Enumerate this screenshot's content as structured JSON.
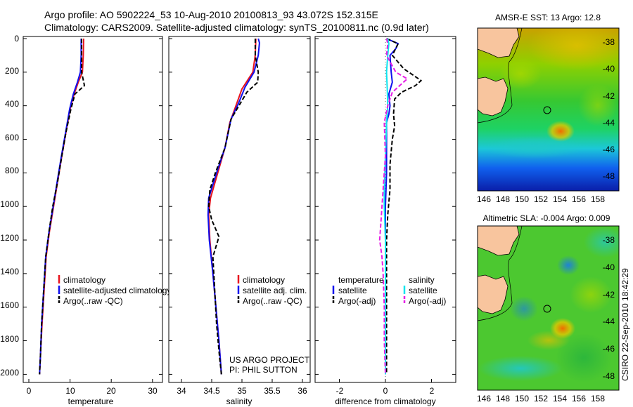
{
  "header": {
    "line1": "Argo profile: AO 5902224_53 10-Aug-2010 20100813_93 43.072S 152.315E",
    "line2": "Climatology: CARS2009. Satellite-adjusted climatology: synTS_20100811.nc (0.9d later)"
  },
  "credits": {
    "project": "US ARGO PROJECT",
    "pi": "PI: PHIL SUTTON",
    "stamp": "CSIRO 22-Sep-2010 18:42:29"
  },
  "colors": {
    "climatology": "#e8141e",
    "satellite": "#1010ee",
    "argo": "#000000",
    "salinity_sat": "#11e4ee",
    "salinity_argo": "#e61ee6",
    "land": "#f8c59e"
  },
  "chart_data": [
    {
      "type": "line",
      "title": "",
      "xlabel": "temperature",
      "ylabel": "",
      "xlim": [
        -2,
        32
      ],
      "ylim": [
        2050,
        0
      ],
      "xticks": [
        0,
        10,
        20,
        30
      ],
      "yticks": [
        0,
        200,
        400,
        600,
        800,
        1000,
        1200,
        1400,
        1600,
        1800,
        2000
      ],
      "series": [
        {
          "name": "climatology",
          "color": "#e8141e",
          "dash": "",
          "points": [
            [
              13.3,
              0
            ],
            [
              13.2,
              100
            ],
            [
              13.0,
              200
            ],
            [
              12.0,
              260
            ],
            [
              11.0,
              330
            ],
            [
              10.0,
              420
            ],
            [
              9.0,
              560
            ],
            [
              8.0,
              700
            ],
            [
              7.0,
              850
            ],
            [
              6.0,
              1000
            ],
            [
              5.0,
              1150
            ],
            [
              4.2,
              1300
            ],
            [
              3.7,
              1500
            ],
            [
              3.2,
              1700
            ],
            [
              2.8,
              1900
            ],
            [
              2.6,
              2000
            ]
          ]
        },
        {
          "name": "satellite-adjusted climatology",
          "color": "#1010ee",
          "dash": "",
          "points": [
            [
              12.7,
              0
            ],
            [
              12.7,
              100
            ],
            [
              12.5,
              200
            ],
            [
              11.8,
              260
            ],
            [
              10.8,
              330
            ],
            [
              9.9,
              420
            ],
            [
              8.9,
              560
            ],
            [
              7.9,
              700
            ],
            [
              6.9,
              850
            ],
            [
              5.9,
              1000
            ],
            [
              4.9,
              1150
            ],
            [
              4.1,
              1300
            ],
            [
              3.6,
              1500
            ],
            [
              3.1,
              1700
            ],
            [
              2.8,
              1900
            ],
            [
              2.6,
              2000
            ]
          ]
        },
        {
          "name": "Argo(..raw -QC)",
          "color": "#000000",
          "dash": "6,3",
          "points": [
            [
              12.8,
              0
            ],
            [
              12.8,
              100
            ],
            [
              12.8,
              200
            ],
            [
              13.5,
              280
            ],
            [
              11.2,
              330
            ],
            [
              10.2,
              420
            ],
            [
              9.0,
              560
            ],
            [
              8.0,
              700
            ],
            [
              7.0,
              850
            ],
            [
              5.8,
              1000
            ],
            [
              4.9,
              1150
            ],
            [
              4.1,
              1300
            ],
            [
              3.6,
              1500
            ],
            [
              3.1,
              1700
            ],
            [
              2.8,
              1900
            ],
            [
              2.6,
              2000
            ]
          ]
        }
      ],
      "legend": [
        "climatology",
        "satellite-adjusted climatology",
        "Argo(..raw -QC)"
      ]
    },
    {
      "type": "line",
      "title": "",
      "xlabel": "salinity",
      "ylabel": "",
      "xlim": [
        33.8,
        36.05
      ],
      "ylim": [
        2050,
        0
      ],
      "xticks": [
        34,
        34.5,
        35,
        35.5,
        36
      ],
      "yticks": [
        0,
        200,
        400,
        600,
        800,
        1000,
        1200,
        1400,
        1600,
        1800,
        2000
      ],
      "series": [
        {
          "name": "climatology",
          "color": "#e8141e",
          "dash": "",
          "points": [
            [
              35.23,
              0
            ],
            [
              35.22,
              100
            ],
            [
              35.18,
              200
            ],
            [
              35.0,
              300
            ],
            [
              34.9,
              400
            ],
            [
              34.8,
              500
            ],
            [
              34.72,
              650
            ],
            [
              34.6,
              800
            ],
            [
              34.48,
              950
            ],
            [
              34.45,
              1050
            ],
            [
              34.47,
              1200
            ],
            [
              34.52,
              1400
            ],
            [
              34.57,
              1600
            ],
            [
              34.62,
              1800
            ],
            [
              34.66,
              2000
            ]
          ]
        },
        {
          "name": "satellite adj. clim.",
          "color": "#1010ee",
          "dash": "",
          "points": [
            [
              35.27,
              0
            ],
            [
              35.29,
              25
            ],
            [
              35.27,
              100
            ],
            [
              35.2,
              200
            ],
            [
              35.05,
              290
            ],
            [
              34.95,
              380
            ],
            [
              34.82,
              480
            ],
            [
              34.72,
              650
            ],
            [
              34.58,
              800
            ],
            [
              34.45,
              950
            ],
            [
              34.44,
              1050
            ],
            [
              34.46,
              1200
            ],
            [
              34.52,
              1400
            ],
            [
              34.57,
              1600
            ],
            [
              34.62,
              1800
            ],
            [
              34.66,
              2000
            ]
          ]
        },
        {
          "name": "Argo(..raw -QC)",
          "color": "#000000",
          "dash": "6,3",
          "points": [
            [
              35.22,
              0
            ],
            [
              35.22,
              100
            ],
            [
              35.27,
              200
            ],
            [
              35.26,
              260
            ],
            [
              35.08,
              320
            ],
            [
              34.95,
              400
            ],
            [
              34.82,
              480
            ],
            [
              34.72,
              650
            ],
            [
              34.56,
              800
            ],
            [
              34.47,
              900
            ],
            [
              34.45,
              1000
            ],
            [
              34.5,
              1080
            ],
            [
              34.62,
              1180
            ],
            [
              34.52,
              1300
            ],
            [
              34.55,
              1500
            ],
            [
              34.58,
              1700
            ],
            [
              34.63,
              1900
            ],
            [
              34.66,
              2000
            ]
          ]
        }
      ],
      "legend": [
        "climatology",
        "satellite adj. clim.",
        "Argo(..raw -QC)"
      ]
    },
    {
      "type": "line",
      "title": "",
      "xlabel": "difference from climatology",
      "ylabel": "",
      "xlim": [
        -3,
        3
      ],
      "ylim": [
        2050,
        0
      ],
      "xticks": [
        -2,
        0,
        2
      ],
      "yticks": [
        0,
        200,
        400,
        600,
        800,
        1000,
        1200,
        1400,
        1600,
        1800,
        2000
      ],
      "series": [
        {
          "name": "temperature satellite",
          "color": "#1010ee",
          "dash": "",
          "points": [
            [
              0.05,
              0
            ],
            [
              0.55,
              30
            ],
            [
              0.45,
              60
            ],
            [
              0.2,
              100
            ],
            [
              0.25,
              200
            ],
            [
              0.3,
              260
            ],
            [
              0.15,
              330
            ],
            [
              0.2,
              400
            ],
            [
              0.15,
              450
            ],
            [
              0.05,
              500
            ],
            [
              0.05,
              600
            ],
            [
              0.05,
              800
            ],
            [
              0.0,
              1000
            ],
            [
              0.0,
              1200
            ],
            [
              0.0,
              1600
            ],
            [
              0.0,
              2000
            ]
          ]
        },
        {
          "name": "temperature Argo(-adj)",
          "color": "#000000",
          "dash": "6,3",
          "points": [
            [
              0.05,
              0
            ],
            [
              0.55,
              30
            ],
            [
              0.3,
              100
            ],
            [
              0.8,
              180
            ],
            [
              1.55,
              250
            ],
            [
              1.3,
              280
            ],
            [
              0.7,
              320
            ],
            [
              0.4,
              360
            ],
            [
              0.35,
              450
            ],
            [
              0.4,
              520
            ],
            [
              0.3,
              600
            ],
            [
              0.2,
              750
            ],
            [
              0.2,
              900
            ],
            [
              0.1,
              1050
            ],
            [
              0.05,
              1200
            ],
            [
              0.05,
              1500
            ],
            [
              0.05,
              2000
            ]
          ]
        },
        {
          "name": "salinity satellite",
          "color": "#11e4ee",
          "dash": "",
          "points": [
            [
              0.1,
              0
            ],
            [
              0.15,
              30
            ],
            [
              0.1,
              100
            ],
            [
              0.05,
              200
            ],
            [
              0.08,
              300
            ],
            [
              0.1,
              400
            ],
            [
              0.05,
              500
            ],
            [
              0.0,
              700
            ],
            [
              -0.05,
              900
            ],
            [
              -0.05,
              1000
            ],
            [
              0.0,
              1200
            ],
            [
              0.0,
              1500
            ],
            [
              0.0,
              2000
            ]
          ]
        },
        {
          "name": "salinity Argo(-adj)",
          "color": "#e61ee6",
          "dash": "6,3",
          "points": [
            [
              0.05,
              0
            ],
            [
              0.1,
              30
            ],
            [
              0.05,
              100
            ],
            [
              0.45,
              200
            ],
            [
              0.95,
              240
            ],
            [
              0.7,
              270
            ],
            [
              0.3,
              320
            ],
            [
              0.1,
              400
            ],
            [
              -0.05,
              500
            ],
            [
              0.0,
              700
            ],
            [
              -0.1,
              900
            ],
            [
              -0.15,
              1000
            ],
            [
              -0.2,
              1100
            ],
            [
              -0.25,
              1200
            ],
            [
              -0.15,
              1300
            ],
            [
              -0.1,
              1400
            ],
            [
              -0.05,
              1600
            ],
            [
              -0.05,
              1800
            ],
            [
              0.0,
              2000
            ]
          ]
        }
      ],
      "legend_group_1_title": "temperature",
      "legend_group_2_title": "salinity",
      "legend": [
        "satellite",
        "Argo(-adj)",
        "satellite",
        "Argo(-adj)"
      ]
    },
    {
      "type": "heatmap",
      "title": "AMSR-E SST: 13 Argo: 12.8",
      "xlim": [
        145,
        160
      ],
      "ylim": [
        -49.2,
        -37.2
      ],
      "xticks": [
        146,
        148,
        150,
        152,
        154,
        156,
        158
      ],
      "yticks": [
        -38,
        -40,
        -42,
        -44,
        -46,
        -48
      ],
      "argo_position": [
        152.315,
        -43.072
      ]
    },
    {
      "type": "heatmap",
      "title": "Altimetric SLA: -0.004 Argo: 0.009",
      "xlim": [
        145,
        160
      ],
      "ylim": [
        -49.2,
        -37.2
      ],
      "xticks": [
        146,
        148,
        150,
        152,
        154,
        156,
        158
      ],
      "yticks": [
        -38,
        -40,
        -42,
        -44,
        -46,
        -48
      ],
      "argo_position": [
        152.315,
        -43.072
      ]
    }
  ]
}
